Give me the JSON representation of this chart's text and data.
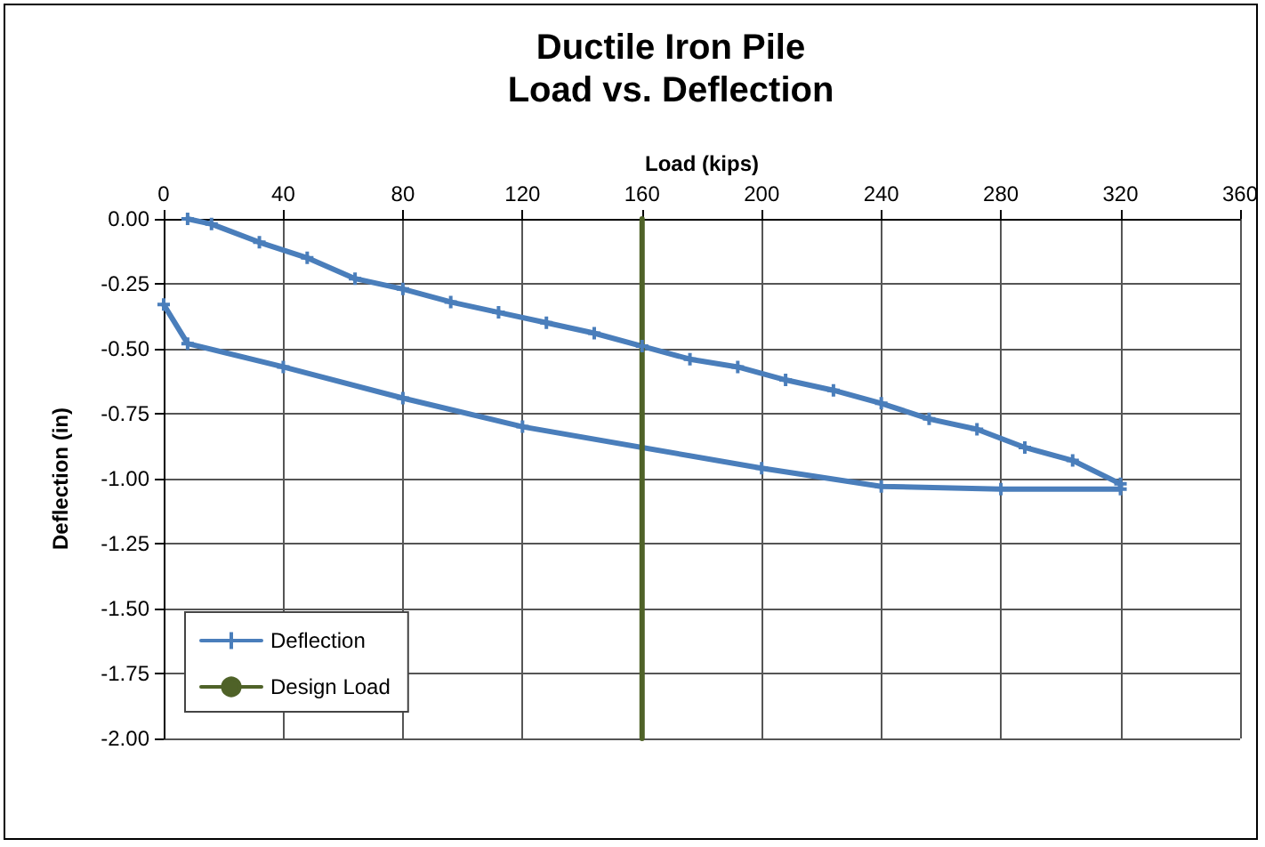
{
  "chart_data": {
    "type": "line",
    "title": "Ductile Iron Pile\nLoad vs. Deflection",
    "xlabel": "Load (kips)",
    "ylabel": "Deflection (in)",
    "series": [
      {
        "name": "Deflection",
        "color": "#4a7ebb",
        "x": [
          8,
          16,
          32,
          48,
          64,
          80,
          96,
          112,
          128,
          144,
          160,
          176,
          192,
          208,
          224,
          240,
          256,
          272,
          288,
          304,
          320,
          320,
          280,
          240,
          200,
          120,
          80,
          40,
          8,
          0
        ],
        "values": [
          0,
          -0.02,
          -0.09,
          -0.15,
          -0.23,
          -0.27,
          -0.32,
          -0.36,
          -0.4,
          -0.44,
          -0.49,
          -0.54,
          -0.57,
          -0.62,
          -0.66,
          -0.71,
          -0.77,
          -0.81,
          -0.88,
          -0.93,
          -1.02,
          -1.04,
          -1.04,
          -1.03,
          -0.96,
          -0.8,
          -0.69,
          -0.57,
          -0.48,
          -0.33
        ]
      },
      {
        "name": "Design Load",
        "color": "#4f6228",
        "x": [
          160,
          160
        ],
        "values": [
          0,
          -2
        ],
        "marker": "none"
      }
    ],
    "xlim": [
      0,
      360
    ],
    "xticks": [
      0,
      40,
      80,
      120,
      160,
      200,
      240,
      280,
      320,
      360
    ],
    "ylim": [
      -2,
      0
    ],
    "yticks": [
      {
        "value": 0,
        "label": "0.00"
      },
      {
        "value": -0.25,
        "label": "-0.25"
      },
      {
        "value": -0.5,
        "label": "-0.50"
      },
      {
        "value": -0.75,
        "label": "-0.75"
      },
      {
        "value": -1,
        "label": "-1.00"
      },
      {
        "value": -1.25,
        "label": "-1.25"
      },
      {
        "value": -1.5,
        "label": "-1.50"
      },
      {
        "value": -1.75,
        "label": "-1.75"
      },
      {
        "value": -2,
        "label": "-2.00"
      }
    ],
    "grid": true,
    "legend": "bottom left",
    "marker": "cross",
    "line_style": "solid"
  }
}
